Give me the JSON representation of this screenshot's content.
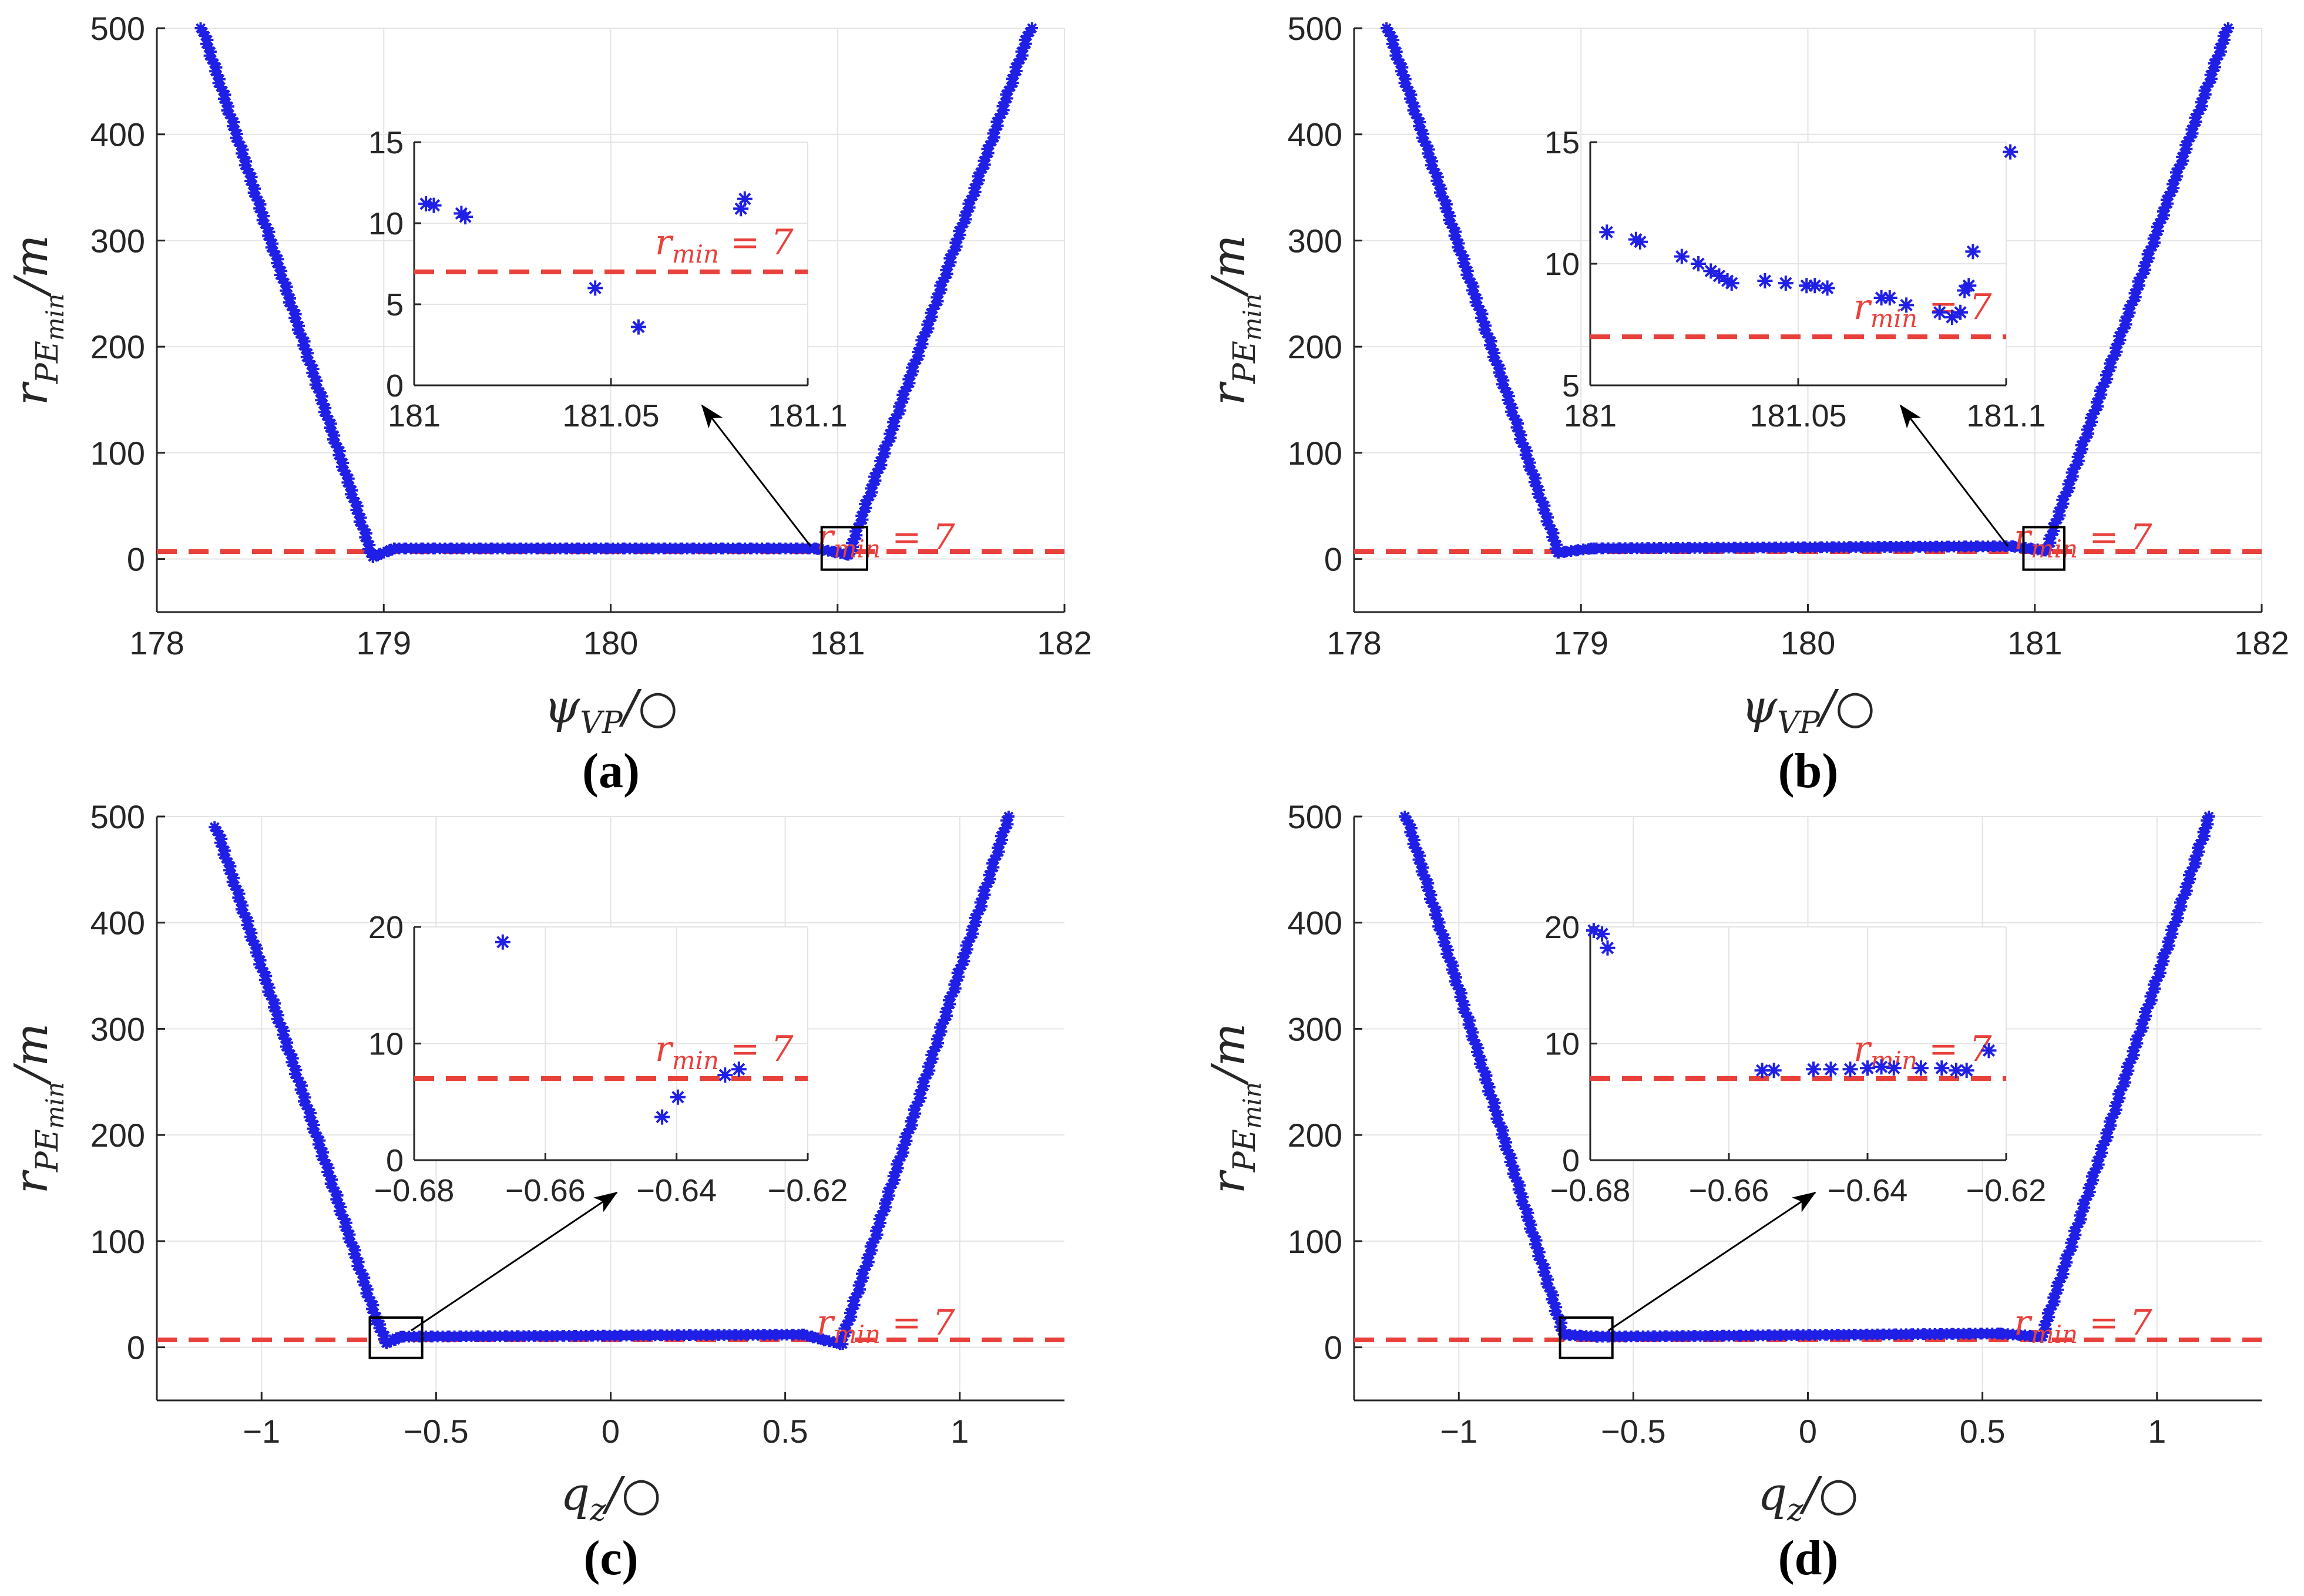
{
  "colors": {
    "marker": "#1f1fe6",
    "threshold": "#e8413c",
    "grid": "#e4e4e4",
    "axis": "#262626"
  },
  "threshold_label": {
    "var": "r",
    "sub": "min",
    "rest": "= 7"
  },
  "y_label": {
    "var": "r",
    "sub": "PE",
    "subsub": "min",
    "rest": "/m"
  },
  "chart_data": [
    {
      "type": "scatter",
      "caption": "(a)",
      "xlabel": {
        "var": "ψ",
        "sub": "VP",
        "rest": "/○"
      },
      "xlim": [
        178,
        182
      ],
      "ylim": [
        -50,
        500
      ],
      "xticks": [
        "178",
        "179",
        "180",
        "181",
        "182"
      ],
      "xtick_values": [
        178,
        179,
        180,
        181,
        182
      ],
      "yticks": [
        "0",
        "100",
        "200",
        "300",
        "400",
        "500"
      ],
      "ytick_values": [
        0,
        100,
        200,
        300,
        400,
        500
      ],
      "threshold": 7,
      "curve_points": [
        [
          178.2,
          500
        ],
        [
          178.95,
          2
        ],
        [
          179.05,
          10
        ],
        [
          180.9,
          10
        ],
        [
          181.05,
          4
        ],
        [
          181.85,
          500
        ]
      ],
      "highlight_box": {
        "x": [
          180.93,
          181.13
        ],
        "y": [
          -10,
          30
        ]
      },
      "inset": {
        "xlim": [
          181,
          181.1
        ],
        "ylim": [
          0,
          15
        ],
        "xticks": [
          "181",
          "181.05",
          "181.1"
        ],
        "xtick_values": [
          181,
          181.05,
          181.1
        ],
        "yticks": [
          "0",
          "5",
          "10",
          "15"
        ],
        "ytick_values": [
          0,
          5,
          10,
          15
        ],
        "points": [
          [
            181.003,
            11.2
          ],
          [
            181.005,
            11.1
          ],
          [
            181.012,
            10.6
          ],
          [
            181.013,
            10.4
          ],
          [
            181.046,
            6.0
          ],
          [
            181.057,
            3.6
          ],
          [
            181.083,
            10.9
          ],
          [
            181.084,
            11.5
          ]
        ]
      }
    },
    {
      "type": "scatter",
      "caption": "(b)",
      "xlabel": {
        "var": "ψ",
        "sub": "VP",
        "rest": "/○"
      },
      "xlim": [
        178,
        182
      ],
      "ylim": [
        -50,
        500
      ],
      "xticks": [
        "178",
        "179",
        "180",
        "181",
        "182"
      ],
      "xtick_values": [
        178,
        179,
        180,
        181,
        182
      ],
      "yticks": [
        "0",
        "100",
        "200",
        "300",
        "400",
        "500"
      ],
      "ytick_values": [
        0,
        100,
        200,
        300,
        400,
        500
      ],
      "threshold": 7,
      "curve_points": [
        [
          178.15,
          500
        ],
        [
          178.9,
          6
        ],
        [
          179.05,
          10
        ],
        [
          180.9,
          12
        ],
        [
          181.05,
          8
        ],
        [
          181.85,
          500
        ]
      ],
      "highlight_box": {
        "x": [
          180.95,
          181.13
        ],
        "y": [
          -10,
          30
        ]
      },
      "inset": {
        "xlim": [
          181,
          181.1
        ],
        "ylim": [
          5,
          15
        ],
        "xticks": [
          "181",
          "181.05",
          "181.1"
        ],
        "xtick_values": [
          181,
          181.05,
          181.1
        ],
        "yticks": [
          "5",
          "10",
          "15"
        ],
        "ytick_values": [
          5,
          10,
          15
        ],
        "points": [
          [
            181.004,
            11.3
          ],
          [
            181.011,
            11.0
          ],
          [
            181.012,
            10.9
          ],
          [
            181.022,
            10.3
          ],
          [
            181.026,
            10.0
          ],
          [
            181.029,
            9.7
          ],
          [
            181.031,
            9.5
          ],
          [
            181.033,
            9.3
          ],
          [
            181.034,
            9.2
          ],
          [
            181.042,
            9.3
          ],
          [
            181.047,
            9.2
          ],
          [
            181.052,
            9.1
          ],
          [
            181.054,
            9.1
          ],
          [
            181.057,
            9.0
          ],
          [
            181.07,
            8.6
          ],
          [
            181.072,
            8.6
          ],
          [
            181.076,
            8.3
          ],
          [
            181.084,
            8.0
          ],
          [
            181.087,
            7.8
          ],
          [
            181.089,
            8.0
          ],
          [
            181.09,
            8.9
          ],
          [
            181.091,
            9.1
          ],
          [
            181.092,
            10.5
          ],
          [
            181.101,
            14.6
          ]
        ]
      }
    },
    {
      "type": "scatter",
      "caption": "(c)",
      "xlabel": {
        "var": "q",
        "sub": "z",
        "rest": "/○"
      },
      "xlim": [
        -1.3,
        1.3
      ],
      "ylim": [
        -50,
        500
      ],
      "xticks": [
        "−1",
        "−0.5",
        "0",
        "0.5",
        "1"
      ],
      "xtick_values": [
        -1,
        -0.5,
        0,
        0.5,
        1
      ],
      "yticks": [
        "0",
        "100",
        "200",
        "300",
        "400",
        "500"
      ],
      "ytick_values": [
        0,
        100,
        200,
        300,
        400,
        500
      ],
      "threshold": 7,
      "curve_points": [
        [
          -1.13,
          490
        ],
        [
          -0.67,
          25
        ],
        [
          -0.64,
          4
        ],
        [
          -0.6,
          10
        ],
        [
          0.55,
          12
        ],
        [
          0.66,
          3
        ],
        [
          1.14,
          500
        ]
      ],
      "highlight_box": {
        "x": [
          -0.69,
          -0.54
        ],
        "y": [
          -10,
          28
        ]
      },
      "inset": {
        "xlim": [
          -0.68,
          -0.62
        ],
        "ylim": [
          0,
          20
        ],
        "xticks": [
          "−0.68",
          "−0.66",
          "−0.64",
          "−0.62"
        ],
        "xtick_values": [
          -0.68,
          -0.66,
          -0.64,
          -0.62
        ],
        "yticks": [
          "0",
          "10",
          "20"
        ],
        "ytick_values": [
          0,
          10,
          20
        ],
        "points": [
          [
            -0.6665,
            18.7
          ],
          [
            -0.6422,
            3.7
          ],
          [
            -0.6398,
            5.4
          ],
          [
            -0.6326,
            7.3
          ],
          [
            -0.6305,
            7.8
          ]
        ]
      }
    },
    {
      "type": "scatter",
      "caption": "(d)",
      "xlabel": {
        "var": "q",
        "sub": "z",
        "rest": "/○"
      },
      "xlim": [
        -1.3,
        1.3
      ],
      "ylim": [
        -50,
        500
      ],
      "xticks": [
        "−1",
        "−0.5",
        "0",
        "0.5",
        "1"
      ],
      "xtick_values": [
        -1,
        -0.5,
        0,
        0.5,
        1
      ],
      "yticks": [
        "0",
        "100",
        "200",
        "300",
        "400",
        "500"
      ],
      "ytick_values": [
        0,
        100,
        200,
        300,
        400,
        500
      ],
      "threshold": 7,
      "curve_points": [
        [
          -1.15,
          500
        ],
        [
          -0.7,
          12
        ],
        [
          -0.6,
          10
        ],
        [
          0.55,
          13
        ],
        [
          0.67,
          10
        ],
        [
          1.15,
          500
        ]
      ],
      "highlight_box": {
        "x": [
          -0.71,
          -0.56
        ],
        "y": [
          -10,
          28
        ]
      },
      "inset": {
        "xlim": [
          -0.68,
          -0.62
        ],
        "ylim": [
          0,
          20
        ],
        "xticks": [
          "−0.68",
          "−0.66",
          "−0.64",
          "−0.62"
        ],
        "xtick_values": [
          -0.68,
          -0.66,
          -0.64,
          -0.62
        ],
        "yticks": [
          "0",
          "10",
          "20"
        ],
        "ytick_values": [
          0,
          10,
          20
        ],
        "points": [
          [
            -0.6795,
            19.7
          ],
          [
            -0.6783,
            19.4
          ],
          [
            -0.6775,
            18.2
          ],
          [
            -0.6552,
            7.7
          ],
          [
            -0.6535,
            7.7
          ],
          [
            -0.6478,
            7.8
          ],
          [
            -0.6453,
            7.8
          ],
          [
            -0.6425,
            7.8
          ],
          [
            -0.64,
            7.9
          ],
          [
            -0.638,
            8.0
          ],
          [
            -0.6362,
            7.9
          ],
          [
            -0.6323,
            7.9
          ],
          [
            -0.6293,
            7.9
          ],
          [
            -0.6272,
            7.7
          ],
          [
            -0.6257,
            7.7
          ],
          [
            -0.6225,
            9.4
          ]
        ]
      }
    }
  ]
}
